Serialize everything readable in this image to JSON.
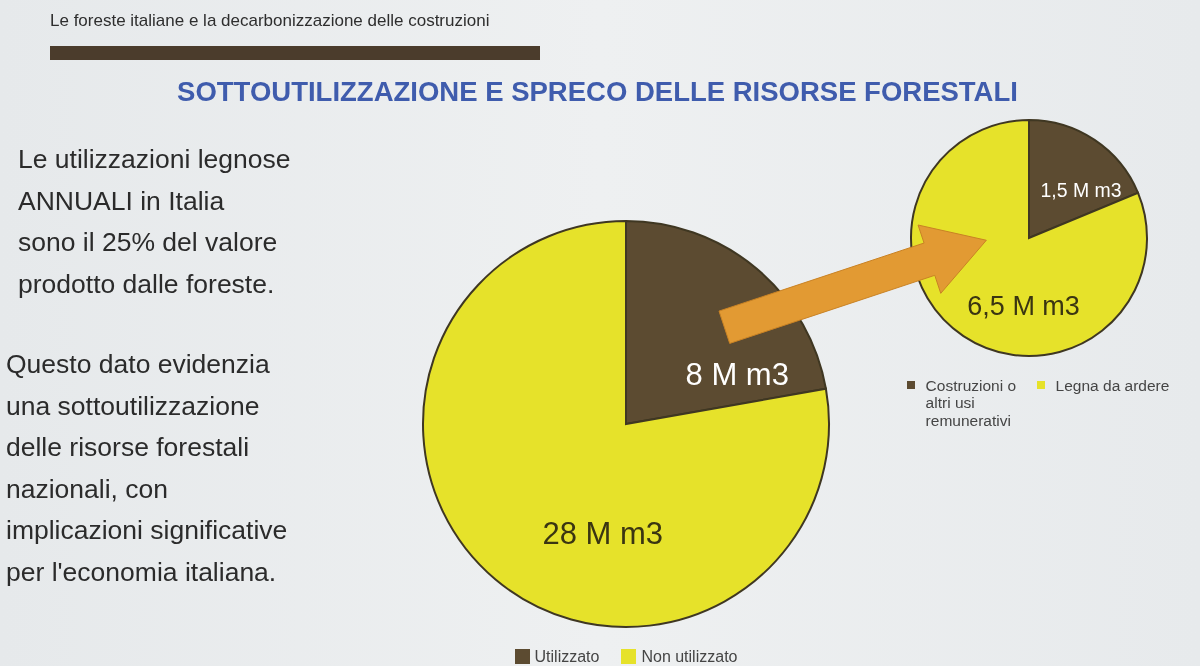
{
  "chart_data": [
    {
      "type": "pie",
      "title": "SOTTOUTILIZZAZIONE E SPRECO DELLE RISORSE FORESTALI",
      "subtitle": "Le foreste italiane e la decarbonizzazione delle costruzioni",
      "annotations": [
        "Le utilizzazioni legnose\nANNUALI in Italia\nsono il 25% del valore\nprodotto dalle foreste.",
        "Questo dato evidenzia\nuna sottoutilizzazione\ndelle risorse forestali\nnazionali, con\nimplicazioni significative\nper l'economia italiana."
      ],
      "categories": [
        "Utilizzato",
        "Non utilizzato"
      ],
      "values": [
        8,
        28
      ],
      "colors": [
        "#5c4b31",
        "#e6e22a"
      ],
      "value_labels": [
        "8 M m3",
        "28 M m3"
      ],
      "legend": "bottom"
    },
    {
      "type": "pie",
      "categories": [
        "Costruzioni o altri usi remunerativi",
        "Legna da ardere"
      ],
      "values": [
        1.5,
        6.5
      ],
      "colors": [
        "#5c4b31",
        "#e6e22a"
      ],
      "value_labels": [
        "1,5 M m3",
        "6,5 M m3"
      ],
      "legend": "bottom"
    }
  ]
}
